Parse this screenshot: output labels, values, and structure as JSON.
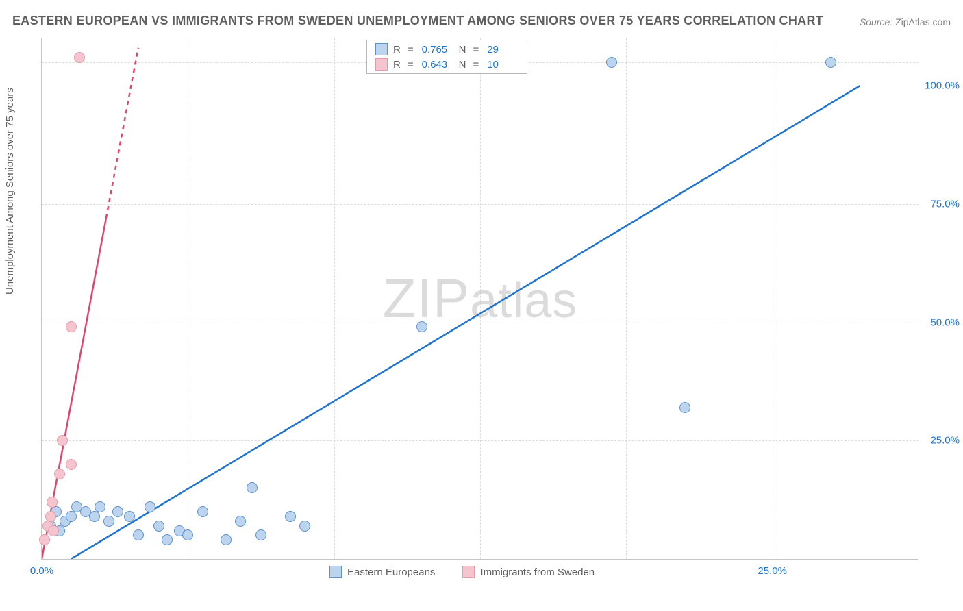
{
  "title": "EASTERN EUROPEAN VS IMMIGRANTS FROM SWEDEN UNEMPLOYMENT AMONG SENIORS OVER 75 YEARS CORRELATION CHART",
  "source_label": "Source:",
  "source_value": "ZipAtlas.com",
  "ylabel": "Unemployment Among Seniors over 75 years",
  "watermark_a": "ZIP",
  "watermark_b": "atlas",
  "colors": {
    "blue_stroke": "#5a93d1",
    "blue_fill": "#bcd4ee",
    "blue_text": "#1e73d2",
    "pink_stroke": "#e49aaa",
    "pink_fill": "#f5c5cf",
    "pink_text": "#d83f6b",
    "trend_blue": "#1e73d2",
    "trend_pink": "#e0456e",
    "grid": "#dcdcdc",
    "axis": "#c6c6c6",
    "title_color": "#5f5f5f"
  },
  "chart": {
    "type": "scatter",
    "xlim": [
      0,
      30
    ],
    "ylim": [
      0,
      110
    ],
    "xticks": [
      {
        "v": 0,
        "label": "0.0%"
      },
      {
        "v": 25,
        "label": "25.0%"
      }
    ],
    "yticks": [
      {
        "v": 25,
        "label": "25.0%"
      },
      {
        "v": 50,
        "label": "50.0%"
      },
      {
        "v": 75,
        "label": "75.0%"
      },
      {
        "v": 100,
        "label": "100.0%"
      }
    ],
    "vgrid": [
      5,
      10,
      15,
      20,
      25
    ],
    "hgrid": [
      25,
      50,
      75,
      105
    ],
    "point_radius": 8,
    "point_border": 1.5,
    "trend_width": 2.5,
    "series": [
      {
        "name": "Eastern Europeans",
        "color_key": "blue",
        "R": "0.765",
        "N": "29",
        "trend": {
          "x1": 1.0,
          "y1": 0,
          "x2": 28.0,
          "y2": 100,
          "dash": false
        },
        "points": [
          [
            0.3,
            7
          ],
          [
            0.5,
            10
          ],
          [
            0.6,
            6
          ],
          [
            0.8,
            8
          ],
          [
            1.0,
            9
          ],
          [
            1.2,
            11
          ],
          [
            1.5,
            10
          ],
          [
            1.8,
            9
          ],
          [
            2.0,
            11
          ],
          [
            2.3,
            8
          ],
          [
            2.6,
            10
          ],
          [
            3.0,
            9
          ],
          [
            3.3,
            5
          ],
          [
            3.7,
            11
          ],
          [
            4.0,
            7
          ],
          [
            4.3,
            4
          ],
          [
            4.7,
            6
          ],
          [
            5.0,
            5
          ],
          [
            5.5,
            10
          ],
          [
            6.3,
            4
          ],
          [
            6.8,
            8
          ],
          [
            7.2,
            15
          ],
          [
            7.5,
            5
          ],
          [
            8.5,
            9
          ],
          [
            9.0,
            7
          ],
          [
            13.0,
            49
          ],
          [
            19.5,
            105
          ],
          [
            22.0,
            32
          ],
          [
            27.0,
            105
          ]
        ]
      },
      {
        "name": "Immigrants from Sweden",
        "color_key": "pink",
        "R": "0.643",
        "N": "10",
        "trend": {
          "x1": 0,
          "y1": 0,
          "x2": 2.2,
          "y2": 72,
          "dash": false
        },
        "trend_ext": {
          "x1": 2.2,
          "y1": 72,
          "x2": 3.3,
          "y2": 108,
          "dash": true
        },
        "points": [
          [
            0.1,
            4
          ],
          [
            0.2,
            7
          ],
          [
            0.3,
            9
          ],
          [
            0.35,
            12
          ],
          [
            0.4,
            6
          ],
          [
            0.6,
            18
          ],
          [
            0.7,
            25
          ],
          [
            1.0,
            20
          ],
          [
            1.0,
            49
          ],
          [
            1.3,
            106
          ]
        ]
      }
    ]
  }
}
